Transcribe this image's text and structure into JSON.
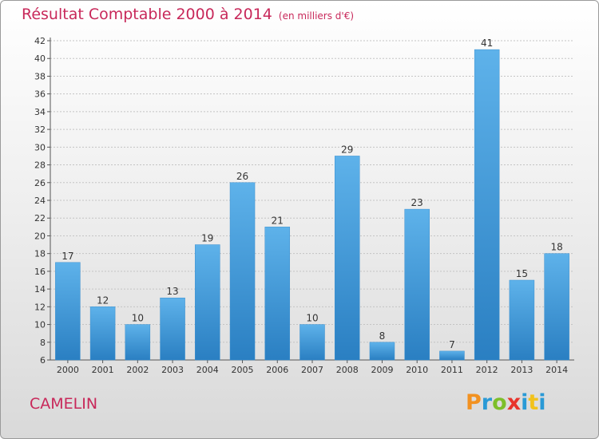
{
  "header": {
    "title": "Résultat Comptable 2000 à 2014",
    "subtitle": "(en milliers d'€)"
  },
  "commune": "CAMELIN",
  "brand": {
    "text": "Proxiti",
    "letters": [
      "P",
      "r",
      "o",
      "x",
      "i",
      "t",
      "i"
    ]
  },
  "colors": {
    "title": "#c8285a",
    "bar_light": "#5eb2ea",
    "bar_dark": "#2a7fc2"
  },
  "chart_data": {
    "type": "bar",
    "categories": [
      "2000",
      "2001",
      "2002",
      "2003",
      "2004",
      "2005",
      "2006",
      "2007",
      "2008",
      "2009",
      "2010",
      "2011",
      "2012",
      "2013",
      "2014"
    ],
    "values": [
      17,
      12,
      10,
      13,
      19,
      26,
      21,
      10,
      29,
      8,
      23,
      7,
      41,
      15,
      18
    ],
    "ylim": [
      6,
      42
    ],
    "yticks": [
      6,
      8,
      10,
      12,
      14,
      16,
      18,
      20,
      22,
      24,
      26,
      28,
      30,
      32,
      34,
      36,
      38,
      40,
      42
    ],
    "grid": true,
    "title": "Résultat Comptable 2000 à 2014",
    "xlabel": "",
    "ylabel": ""
  }
}
